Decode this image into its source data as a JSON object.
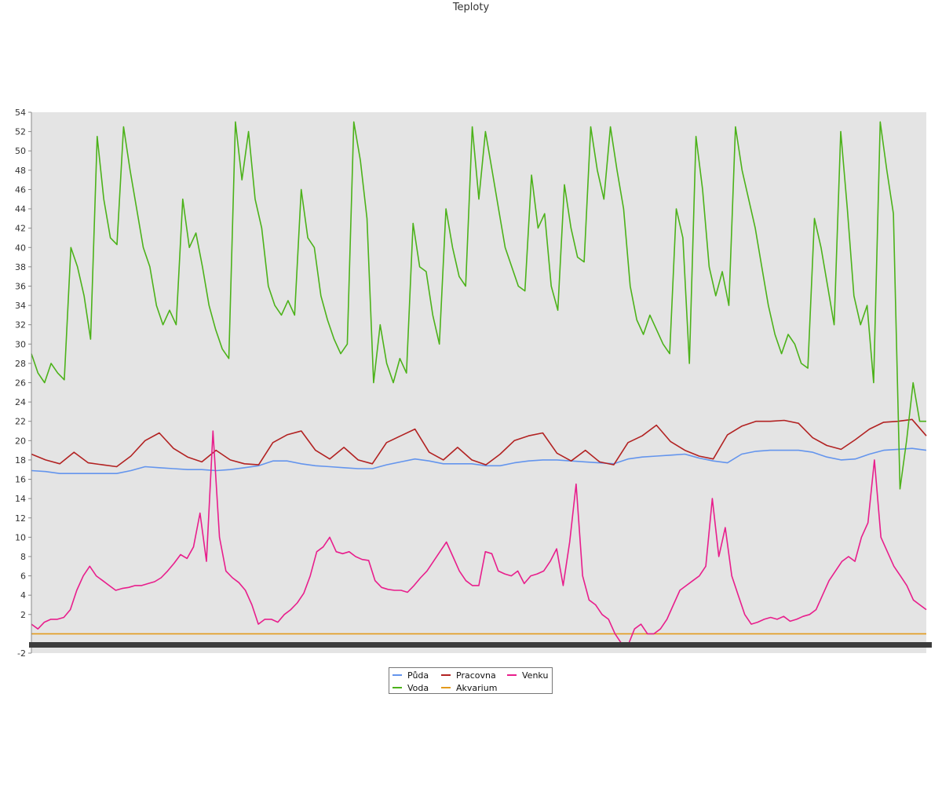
{
  "chart_data": {
    "type": "line",
    "title": "Teploty",
    "ylim": [
      -2,
      54
    ],
    "yticks": [
      -2,
      2,
      4,
      6,
      8,
      10,
      12,
      14,
      16,
      18,
      20,
      22,
      24,
      26,
      28,
      30,
      32,
      34,
      36,
      38,
      40,
      42,
      44,
      46,
      48,
      50,
      52,
      54
    ],
    "grid": false,
    "legend": "bottom-center",
    "background": "#e4e4e4",
    "series": [
      {
        "name": "Půda",
        "color": "#6495ed",
        "values": [
          16.9,
          16.8,
          16.6,
          16.6,
          16.6,
          16.6,
          16.6,
          16.9,
          17.3,
          17.2,
          17.1,
          17.0,
          17.0,
          16.9,
          17.0,
          17.2,
          17.4,
          17.9,
          17.9,
          17.6,
          17.4,
          17.3,
          17.2,
          17.1,
          17.1,
          17.5,
          17.8,
          18.1,
          17.9,
          17.6,
          17.6,
          17.6,
          17.4,
          17.4,
          17.7,
          17.9,
          18.0,
          18.0,
          17.9,
          17.8,
          17.7,
          17.6,
          18.1,
          18.3,
          18.4,
          18.5,
          18.6,
          18.2,
          17.9,
          17.7,
          18.6,
          18.9,
          19.0,
          19.0,
          19.0,
          18.8,
          18.3,
          18.0,
          18.1,
          18.6,
          19.0,
          19.1,
          19.2,
          19.0
        ]
      },
      {
        "name": "Pracovna",
        "color": "#b22222",
        "values": [
          18.6,
          18.0,
          17.6,
          18.8,
          17.7,
          17.5,
          17.3,
          18.4,
          20.0,
          20.8,
          19.2,
          18.3,
          17.8,
          19.0,
          18.0,
          17.6,
          17.5,
          19.8,
          20.6,
          21.0,
          19.0,
          18.1,
          19.3,
          18.0,
          17.6,
          19.8,
          20.5,
          21.2,
          18.8,
          18.0,
          19.3,
          18.0,
          17.5,
          18.6,
          20.0,
          20.5,
          20.8,
          18.7,
          17.9,
          19.0,
          17.8,
          17.5,
          19.8,
          20.5,
          21.6,
          19.9,
          19.0,
          18.4,
          18.1,
          20.6,
          21.5,
          22.0,
          22.0,
          22.1,
          21.8,
          20.3,
          19.5,
          19.1,
          20.1,
          21.2,
          21.9,
          22.0,
          22.2,
          20.5
        ]
      },
      {
        "name": "Voda",
        "color": "#4cb21a",
        "values": [
          29.0,
          27.0,
          26.0,
          28.0,
          27.0,
          26.3,
          40.0,
          38.0,
          35.0,
          30.5,
          51.5,
          45.0,
          41.0,
          40.3,
          52.5,
          48.0,
          44.0,
          40.0,
          38.0,
          34.0,
          32.0,
          33.5,
          32.0,
          45.0,
          40.0,
          41.5,
          38.0,
          34.0,
          31.5,
          29.5,
          28.5,
          53.0,
          47.0,
          52.0,
          45.0,
          42.0,
          36.0,
          34.0,
          33.0,
          34.5,
          33.0,
          46.0,
          41.0,
          40.0,
          35.0,
          32.5,
          30.5,
          29.0,
          30.0,
          53.0,
          49.0,
          43.0,
          26.0,
          32.0,
          28.0,
          26.0,
          28.5,
          27.0,
          42.5,
          38.0,
          37.5,
          33.0,
          30.0,
          44.0,
          40.0,
          37.0,
          36.0,
          52.5,
          45.0,
          52.0,
          48.0,
          44.0,
          40.0,
          38.0,
          36.0,
          35.5,
          47.5,
          42.0,
          43.5,
          36.0,
          33.5,
          46.5,
          42.0,
          39.0,
          38.5,
          52.5,
          48.0,
          45.0,
          52.5,
          48.0,
          44.0,
          36.0,
          32.5,
          31.0,
          33.0,
          31.5,
          30.0,
          29.0,
          44.0,
          41.0,
          28.0,
          51.5,
          46.0,
          38.0,
          35.0,
          37.5,
          34.0,
          52.5,
          48.0,
          45.0,
          42.0,
          38.0,
          34.0,
          31.0,
          29.0,
          31.0,
          30.0,
          28.0,
          27.5,
          43.0,
          40.0,
          36.0,
          32.0,
          52.0,
          44.0,
          35.0,
          32.0,
          34.0,
          26.0,
          53.0,
          48.0,
          43.5,
          15.0,
          20.0,
          26.0,
          22.0,
          22.0
        ]
      },
      {
        "name": "Akvarium",
        "color": "#e39a1c",
        "values": [
          0,
          0
        ]
      },
      {
        "name": "Venku",
        "color": "#e81e8c",
        "values": [
          1.0,
          0.5,
          1.2,
          1.5,
          1.5,
          1.7,
          2.5,
          4.5,
          6.0,
          7.0,
          6.0,
          5.5,
          5.0,
          4.5,
          4.7,
          4.8,
          5.0,
          5.0,
          5.2,
          5.4,
          5.8,
          6.5,
          7.3,
          8.2,
          7.8,
          9.0,
          12.5,
          7.5,
          21.0,
          10.0,
          6.5,
          5.8,
          5.3,
          4.5,
          3.0,
          1.0,
          1.5,
          1.5,
          1.2,
          2.0,
          2.5,
          3.2,
          4.2,
          6.0,
          8.5,
          9.0,
          10.0,
          8.5,
          8.3,
          8.5,
          8.0,
          7.7,
          7.6,
          5.5,
          4.8,
          4.6,
          4.5,
          4.5,
          4.3,
          5.0,
          5.8,
          6.5,
          7.5,
          8.5,
          9.5,
          8.0,
          6.5,
          5.5,
          5.0,
          5.0,
          8.5,
          8.3,
          6.5,
          6.2,
          6.0,
          6.5,
          5.2,
          6.0,
          6.2,
          6.5,
          7.5,
          8.8,
          5.0,
          9.5,
          15.5,
          6.0,
          3.5,
          3.0,
          2.0,
          1.5,
          0.0,
          -1.0,
          -1.2,
          0.5,
          1.0,
          0.0,
          0.0,
          0.5,
          1.5,
          3.0,
          4.5,
          5.0,
          5.5,
          6.0,
          7.0,
          14.0,
          8.0,
          11.0,
          6.0,
          4.0,
          2.0,
          1.0,
          1.2,
          1.5,
          1.7,
          1.5,
          1.8,
          1.3,
          1.5,
          1.8,
          2.0,
          2.5,
          4.0,
          5.5,
          6.5,
          7.5,
          8.0,
          7.5,
          10.0,
          11.5,
          18.0,
          10.0,
          8.5,
          7.0,
          6.0,
          5.0,
          3.5,
          3.0,
          2.5
        ]
      }
    ]
  }
}
